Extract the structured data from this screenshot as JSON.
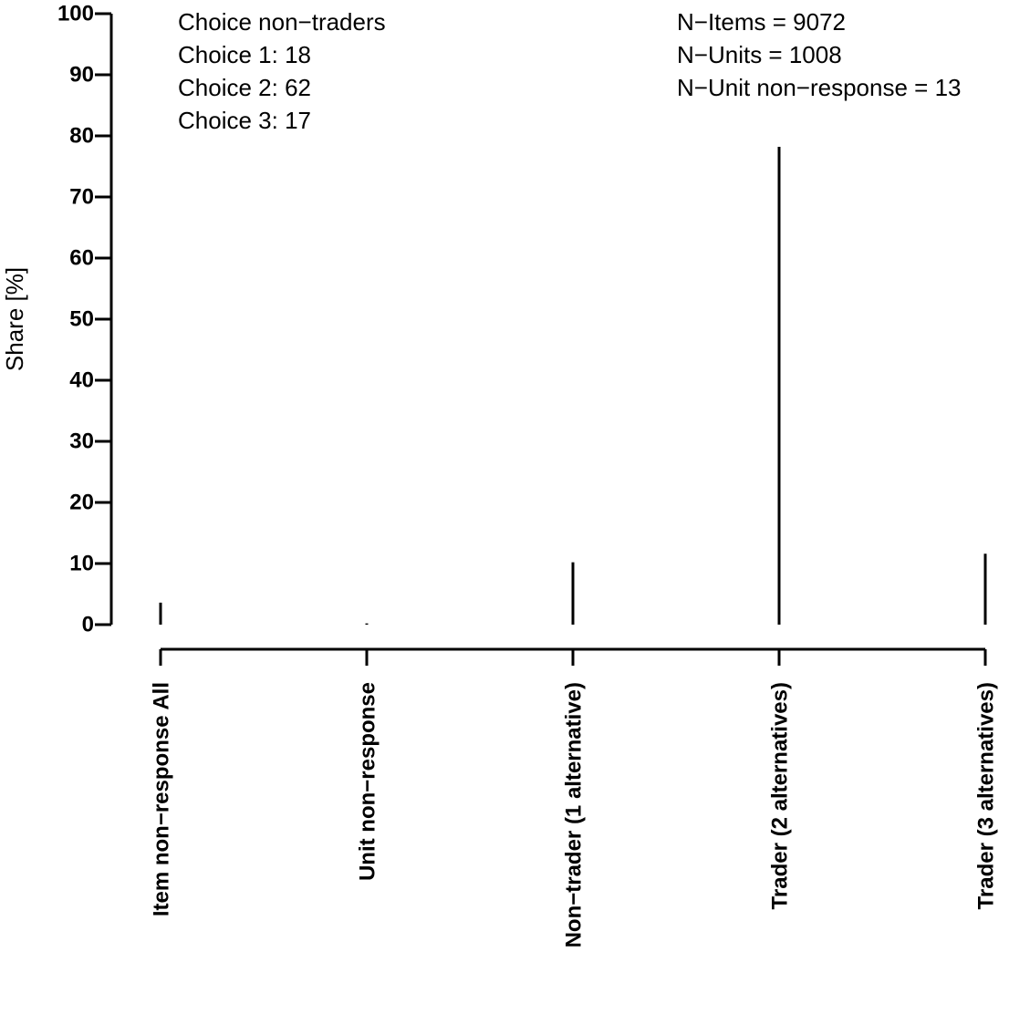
{
  "chart_data": {
    "type": "spike",
    "y_label": "Share [%]",
    "categories": [
      "Item non−response All",
      "Unit non−response",
      "Non−trader (1 alternative)",
      "Trader (2 alternatives)",
      "Trader (3 alternatives)"
    ],
    "values": [
      3.6,
      0.2,
      10.2,
      78.2,
      11.6
    ],
    "color": "#000000",
    "ylim": [
      0,
      100
    ],
    "yticks": [
      0,
      10,
      20,
      30,
      40,
      50,
      60,
      70,
      80,
      90,
      100
    ],
    "annotations_left": [
      "Choice non−traders",
      "Choice 1: 18",
      "Choice 2: 62",
      "Choice 3: 17"
    ],
    "annotations_right": [
      "N−Items = 9072",
      "N−Units = 1008",
      "N−Unit non−response = 13"
    ]
  }
}
